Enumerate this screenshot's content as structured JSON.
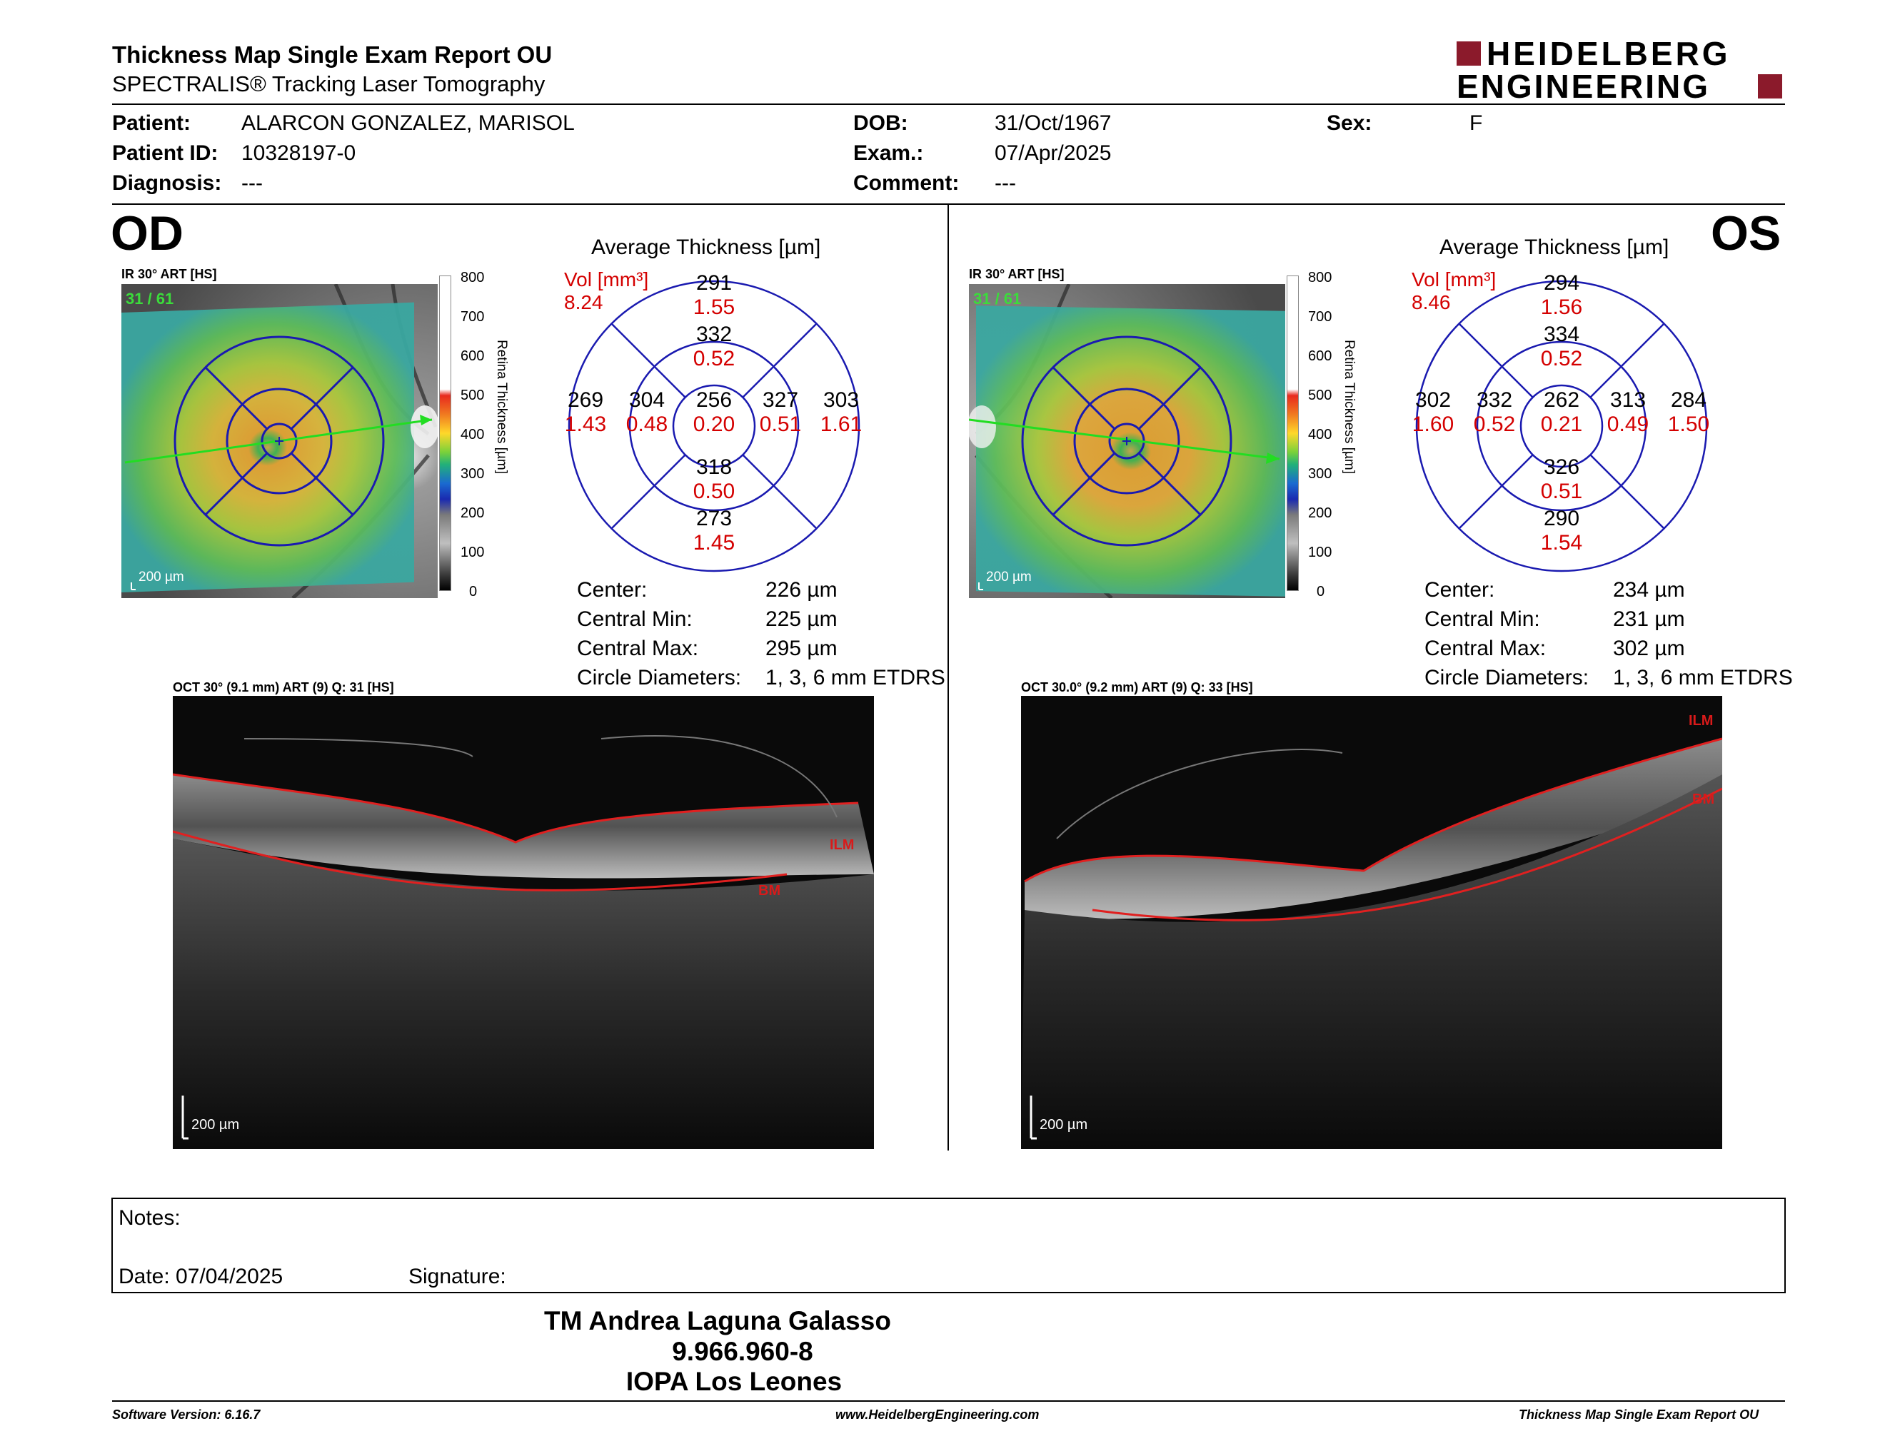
{
  "header": {
    "title": "Thickness Map Single Exam Report OU",
    "subtitle": "SPECTRALIS® Tracking Laser Tomography",
    "logo_line1": "HEIDELBERG",
    "logo_line2": "ENGINEERING",
    "brand_color": "#8b1a2b"
  },
  "patient": {
    "patient_label": "Patient:",
    "patient_value": "ALARCON GONZALEZ, MARISOL",
    "id_label": "Patient ID:",
    "id_value": "10328197-0",
    "diag_label": "Diagnosis:",
    "diag_value": "---",
    "dob_label": "DOB:",
    "dob_value": "31/Oct/1967",
    "exam_label": "Exam.:",
    "exam_value": "07/Apr/2025",
    "comment_label": "Comment:",
    "comment_value": "---",
    "sex_label": "Sex:",
    "sex_value": "F"
  },
  "scale": {
    "axis_label": "Retina Thickness [µm]",
    "ticks": [
      "800",
      "700",
      "600",
      "500",
      "400",
      "300",
      "200",
      "100",
      "0"
    ]
  },
  "od": {
    "eye": "OD",
    "ir_label": "IR 30° ART [HS]",
    "ir_count": "31 / 61",
    "ir_scalebar": "200 µm",
    "avg_title": "Average Thickness [µm]",
    "vol_label": "Vol [mm³]",
    "vol_value": "8.24",
    "sectors": {
      "outer_top": [
        "291",
        "1.55"
      ],
      "inner_top": [
        "332",
        "0.52"
      ],
      "outer_left": [
        "269",
        "1.43"
      ],
      "inner_left": [
        "304",
        "0.48"
      ],
      "center": [
        "256",
        "0.20"
      ],
      "inner_right": [
        "327",
        "0.51"
      ],
      "outer_right": [
        "303",
        "1.61"
      ],
      "inner_bottom": [
        "318",
        "0.50"
      ],
      "outer_bottom": [
        "273",
        "1.45"
      ]
    },
    "stats": [
      {
        "label": "Center:",
        "value": "226 µm"
      },
      {
        "label": "Central Min:",
        "value": "225 µm"
      },
      {
        "label": "Central Max:",
        "value": "295 µm"
      },
      {
        "label": "Circle Diameters:",
        "value": "1, 3, 6 mm ETDRS"
      }
    ],
    "oct_label": "OCT 30° (9.1 mm) ART (9) Q: 31 [HS]",
    "oct_scalebar": "200 µm",
    "ilm": "ILM",
    "bm": "BM"
  },
  "os": {
    "eye": "OS",
    "ir_label": "IR 30° ART [HS]",
    "ir_count": "31 / 61",
    "ir_scalebar": "200 µm",
    "avg_title": "Average Thickness [µm]",
    "vol_label": "Vol [mm³]",
    "vol_value": "8.46",
    "sectors": {
      "outer_top": [
        "294",
        "1.56"
      ],
      "inner_top": [
        "334",
        "0.52"
      ],
      "outer_left": [
        "302",
        "1.60"
      ],
      "inner_left": [
        "332",
        "0.52"
      ],
      "center": [
        "262",
        "0.21"
      ],
      "inner_right": [
        "313",
        "0.49"
      ],
      "outer_right": [
        "284",
        "1.50"
      ],
      "inner_bottom": [
        "326",
        "0.51"
      ],
      "outer_bottom": [
        "290",
        "1.54"
      ]
    },
    "stats": [
      {
        "label": "Center:",
        "value": "234 µm"
      },
      {
        "label": "Central Min:",
        "value": "231 µm"
      },
      {
        "label": "Central Max:",
        "value": "302 µm"
      },
      {
        "label": "Circle Diameters:",
        "value": "1, 3, 6 mm ETDRS"
      }
    ],
    "oct_label": "OCT 30.0° (9.2 mm) ART (9) Q: 33 [HS]",
    "oct_scalebar": "200 µm",
    "ilm": "ILM",
    "bm": "BM"
  },
  "notes": {
    "notes_label": "Notes:",
    "date_label": "Date: 07/04/2025",
    "signature_label": "Signature:"
  },
  "signer": {
    "name": "TM Andrea Laguna Galasso",
    "id": "9.966.960-8",
    "org": "IOPA Los Leones"
  },
  "footer": {
    "software": "Software Version: 6.16.7",
    "website": "www.HeidelbergEngineering.com",
    "report": "Thickness Map Single Exam Report OU"
  }
}
